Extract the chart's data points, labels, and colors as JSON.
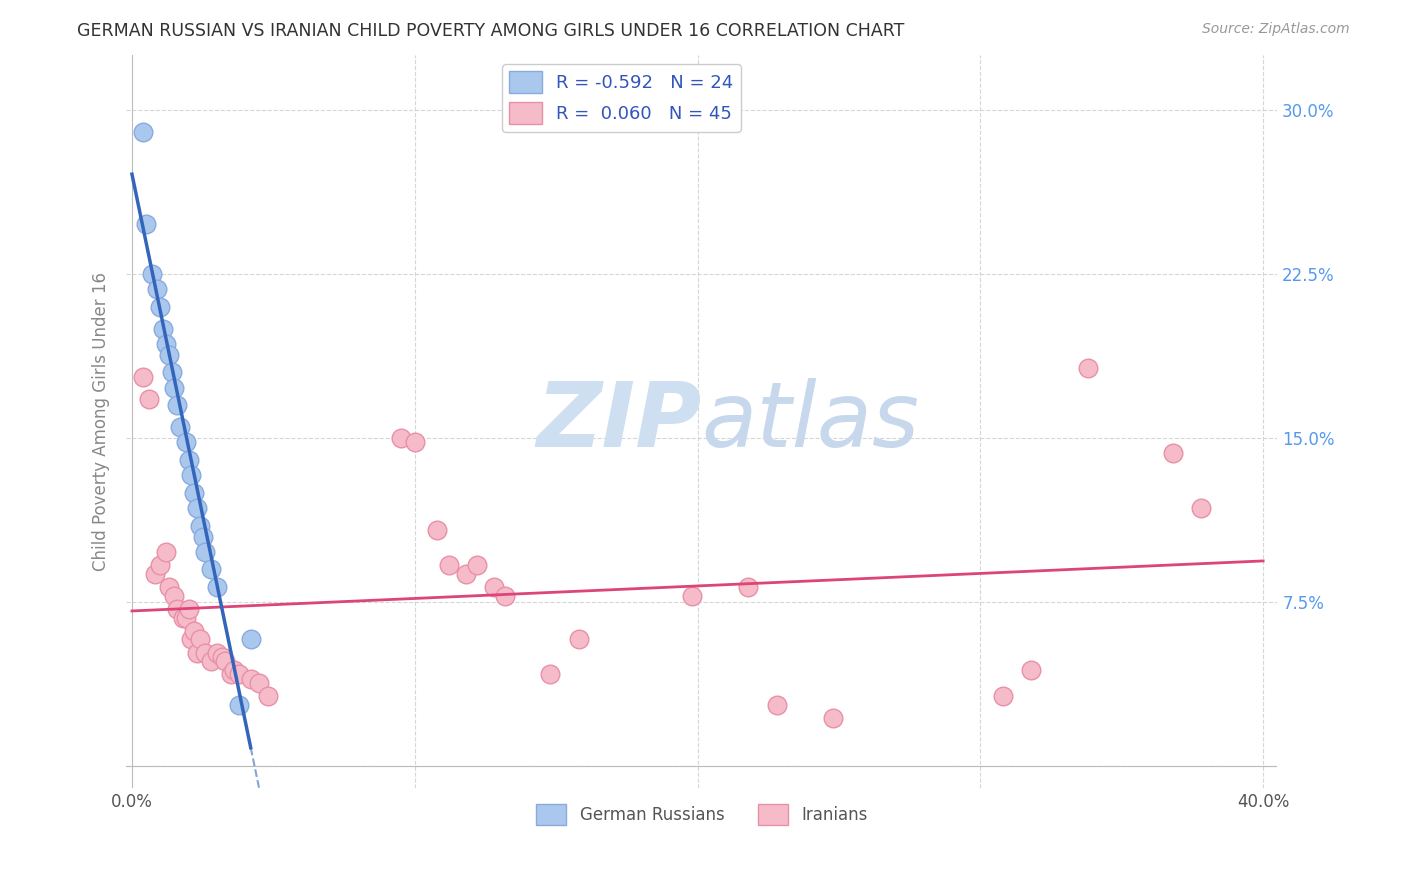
{
  "title": "GERMAN RUSSIAN VS IRANIAN CHILD POVERTY AMONG GIRLS UNDER 16 CORRELATION CHART",
  "source": "Source: ZipAtlas.com",
  "ylabel": "Child Poverty Among Girls Under 16",
  "yticks": [
    0.0,
    0.075,
    0.15,
    0.225,
    0.3
  ],
  "xticks": [
    0.0,
    0.1,
    0.2,
    0.3,
    0.4
  ],
  "xlim": [
    -0.002,
    0.405
  ],
  "ylim": [
    -0.01,
    0.325
  ],
  "legend_blue_r": "R = -0.592",
  "legend_blue_n": "N = 24",
  "legend_pink_r": "R =  0.060",
  "legend_pink_n": "N = 45",
  "legend_label_blue": "German Russians",
  "legend_label_pink": "Iranians",
  "blue_scatter_x": [
    0.004,
    0.005,
    0.007,
    0.009,
    0.01,
    0.011,
    0.012,
    0.013,
    0.014,
    0.015,
    0.016,
    0.017,
    0.019,
    0.02,
    0.021,
    0.022,
    0.023,
    0.024,
    0.025,
    0.026,
    0.028,
    0.03,
    0.038,
    0.042
  ],
  "blue_scatter_y": [
    0.29,
    0.248,
    0.225,
    0.218,
    0.21,
    0.2,
    0.193,
    0.188,
    0.18,
    0.173,
    0.165,
    0.155,
    0.148,
    0.14,
    0.133,
    0.125,
    0.118,
    0.11,
    0.105,
    0.098,
    0.09,
    0.082,
    0.028,
    0.058
  ],
  "pink_scatter_x": [
    0.004,
    0.006,
    0.008,
    0.01,
    0.012,
    0.013,
    0.015,
    0.016,
    0.018,
    0.019,
    0.02,
    0.021,
    0.022,
    0.023,
    0.024,
    0.026,
    0.028,
    0.03,
    0.032,
    0.033,
    0.035,
    0.036,
    0.038,
    0.042,
    0.045,
    0.048,
    0.095,
    0.1,
    0.108,
    0.112,
    0.118,
    0.122,
    0.128,
    0.132,
    0.148,
    0.158,
    0.198,
    0.218,
    0.228,
    0.248,
    0.308,
    0.318,
    0.338,
    0.368,
    0.378
  ],
  "pink_scatter_y": [
    0.178,
    0.168,
    0.088,
    0.092,
    0.098,
    0.082,
    0.078,
    0.072,
    0.068,
    0.068,
    0.072,
    0.058,
    0.062,
    0.052,
    0.058,
    0.052,
    0.048,
    0.052,
    0.05,
    0.048,
    0.042,
    0.044,
    0.042,
    0.04,
    0.038,
    0.032,
    0.15,
    0.148,
    0.108,
    0.092,
    0.088,
    0.092,
    0.082,
    0.078,
    0.042,
    0.058,
    0.078,
    0.082,
    0.028,
    0.022,
    0.032,
    0.044,
    0.182,
    0.143,
    0.118
  ],
  "blue_color": "#aac8ee",
  "blue_edge_color": "#88aadd",
  "pink_color": "#f5bbc8",
  "pink_edge_color": "#e890a8",
  "trendline_blue_color": "#3366bb",
  "trendline_pink_color": "#dd4477",
  "background_color": "#ffffff",
  "watermark_zip": "ZIP",
  "watermark_atlas": "atlas",
  "watermark_color": "#d8e8f5",
  "grid_color": "#cccccc",
  "right_tick_color": "#5599ee",
  "left_tick_color": "#999999"
}
